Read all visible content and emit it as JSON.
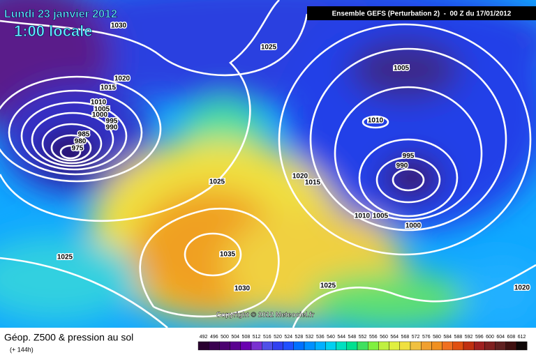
{
  "header": {
    "date": "Lundi 23 janvier 2012",
    "time": "1:00 locale",
    "model": "Ensemble GEFS (Perturbation 2)  -  00 Z du 17/01/2012"
  },
  "isobar_labels": [
    "1030",
    "1025",
    "1020",
    "1015",
    "1010",
    "1005",
    "1000",
    "995",
    "990",
    "985",
    "980",
    "975",
    "1005",
    "1010",
    "995",
    "990",
    "1020",
    "1015",
    "1025",
    "1010",
    "1005",
    "1000",
    "1035",
    "1025",
    "1030",
    "1025",
    "1020"
  ],
  "copyright": "Copyright © 2012 Meteociel.fr",
  "footer": {
    "title": "Géop. Z500 & pression au sol",
    "lead": "(+ 144h)"
  },
  "colorbar": {
    "ticks": [
      492,
      496,
      500,
      504,
      508,
      512,
      516,
      520,
      524,
      528,
      532,
      536,
      540,
      544,
      548,
      552,
      556,
      560,
      564,
      568,
      572,
      576,
      580,
      584,
      588,
      592,
      596,
      600,
      604,
      608,
      612
    ],
    "colors": [
      "#2a0030",
      "#3a0050",
      "#4b0070",
      "#5a0090",
      "#6a00b0",
      "#7a30d0",
      "#5050e8",
      "#3040f0",
      "#2050ff",
      "#0070ff",
      "#0090ff",
      "#00b0ff",
      "#00d0f0",
      "#00e0c0",
      "#00e090",
      "#40e060",
      "#80f040",
      "#c0f040",
      "#e0f040",
      "#f0e040",
      "#f0c040",
      "#f0a030",
      "#f09020",
      "#f07020",
      "#e05010",
      "#c03010",
      "#a02020",
      "#802020",
      "#602020",
      "#401010",
      "#100808"
    ]
  }
}
